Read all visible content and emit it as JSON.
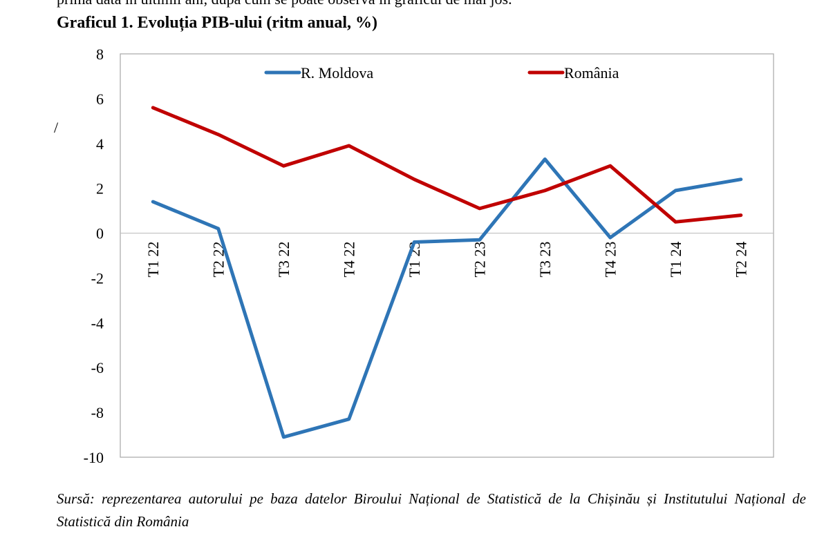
{
  "page": {
    "top_line": "prima dată în ultimii ani, după cum se poate observa în graficul de mai jos.",
    "stray_mark": "/",
    "source_note": "Sursă: reprezentarea autorului pe baza datelor Biroului Național de Statistică de la Chișinău și Institutului Național de Statistică din România"
  },
  "chart_data": {
    "type": "line",
    "title": "Graficul 1. Evoluția PIB-ului (ritm anual, %)",
    "categories": [
      "T1 22",
      "T2 22",
      "T3 22",
      "T4 22",
      "T1 23",
      "T2 23",
      "T3 23",
      "T4 23",
      "T1 24",
      "T2 24"
    ],
    "ylim": [
      -10,
      8
    ],
    "yticks": [
      8,
      6,
      4,
      2,
      0,
      -2,
      -4,
      -6,
      -8,
      -10
    ],
    "grid": false,
    "legend_position": "top",
    "series": [
      {
        "name": "R. Moldova",
        "color": "#2E75B6",
        "values": [
          1.4,
          0.2,
          -9.1,
          -8.3,
          -0.4,
          -0.3,
          3.3,
          -0.2,
          1.9,
          2.4
        ]
      },
      {
        "name": "România",
        "color": "#C00000",
        "values": [
          5.6,
          4.4,
          3.0,
          3.9,
          2.4,
          1.1,
          1.9,
          3.0,
          0.5,
          0.8
        ]
      }
    ]
  }
}
